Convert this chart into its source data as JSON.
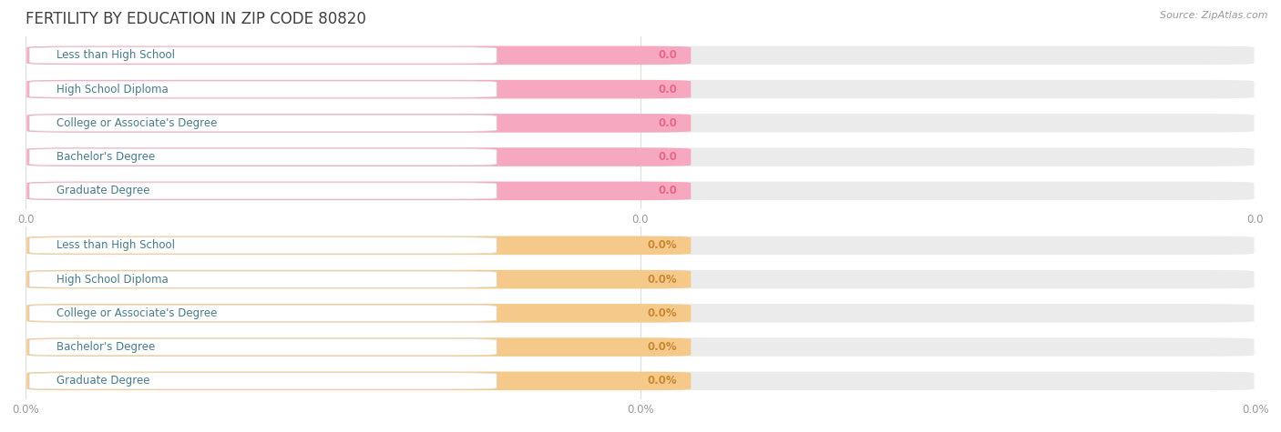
{
  "title": "FERTILITY BY EDUCATION IN ZIP CODE 80820",
  "source": "Source: ZipAtlas.com",
  "categories": [
    "Less than High School",
    "High School Diploma",
    "College or Associate's Degree",
    "Bachelor's Degree",
    "Graduate Degree"
  ],
  "values_top": [
    0.0,
    0.0,
    0.0,
    0.0,
    0.0
  ],
  "values_bottom": [
    0.0,
    0.0,
    0.0,
    0.0,
    0.0
  ],
  "bar_color_top": "#F5A8BF",
  "bar_bg_color": "#EBEBEB",
  "bar_white_area": "#FFFFFF",
  "bar_color_bottom": "#F5C98A",
  "label_text_color": "#4A7A8A",
  "value_label_color_top": "#E8688A",
  "value_label_color_bottom": "#CC8833",
  "title_color": "#404040",
  "source_color": "#999999",
  "axis_tick_color": "#999999",
  "background_color": "#FFFFFF",
  "gridline_color": "#DDDDDD",
  "tick_label_top": "0.0",
  "tick_label_bottom": "0.0%"
}
